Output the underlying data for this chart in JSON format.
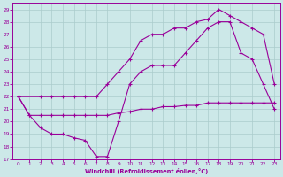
{
  "xlabel": "Windchill (Refroidissement éolien,°C)",
  "bg_color": "#cce8e8",
  "line_color": "#990099",
  "grid_color": "#aacccc",
  "xlim": [
    -0.5,
    23.5
  ],
  "ylim": [
    17,
    29.5
  ],
  "yticks": [
    17,
    18,
    19,
    20,
    21,
    22,
    23,
    24,
    25,
    26,
    27,
    28,
    29
  ],
  "xticks": [
    0,
    1,
    2,
    3,
    4,
    5,
    6,
    7,
    8,
    9,
    10,
    11,
    12,
    13,
    14,
    15,
    16,
    17,
    18,
    19,
    20,
    21,
    22,
    23
  ],
  "line1_x": [
    0,
    1,
    2,
    3,
    4,
    5,
    6,
    7,
    8,
    9,
    10,
    11,
    12,
    13,
    14,
    15,
    16,
    17,
    18,
    19,
    20,
    21,
    22,
    23
  ],
  "line1_y": [
    22,
    20.5,
    20.5,
    20.5,
    20.5,
    20.5,
    20.5,
    20.5,
    20.5,
    20.7,
    20.8,
    21.0,
    21.0,
    21.2,
    21.2,
    21.3,
    21.3,
    21.5,
    21.5,
    21.5,
    21.5,
    21.5,
    21.5,
    21.5
  ],
  "line2_x": [
    0,
    1,
    2,
    3,
    4,
    5,
    6,
    7,
    8,
    9,
    10,
    11,
    12,
    13,
    14,
    15,
    16,
    17,
    18,
    19,
    20,
    21,
    22,
    23
  ],
  "line2_y": [
    22,
    20.5,
    19.5,
    19,
    19,
    18.7,
    18.5,
    17.2,
    17.2,
    20.0,
    23.0,
    24.0,
    24.5,
    24.5,
    24.5,
    25.5,
    26.5,
    27.5,
    28.0,
    28.0,
    25.5,
    25.0,
    23.0,
    21.0
  ],
  "line3_x": [
    0,
    2,
    3,
    4,
    5,
    6,
    7,
    8,
    9,
    10,
    11,
    12,
    13,
    14,
    15,
    16,
    17,
    18,
    19,
    20,
    21,
    22,
    23
  ],
  "line3_y": [
    22,
    22.0,
    22.0,
    22.0,
    22.0,
    22.0,
    22.0,
    23.0,
    24.0,
    25.0,
    26.5,
    27.0,
    27.0,
    27.5,
    27.5,
    28.0,
    28.2,
    29.0,
    28.5,
    28.0,
    27.5,
    27.0,
    23.0
  ]
}
